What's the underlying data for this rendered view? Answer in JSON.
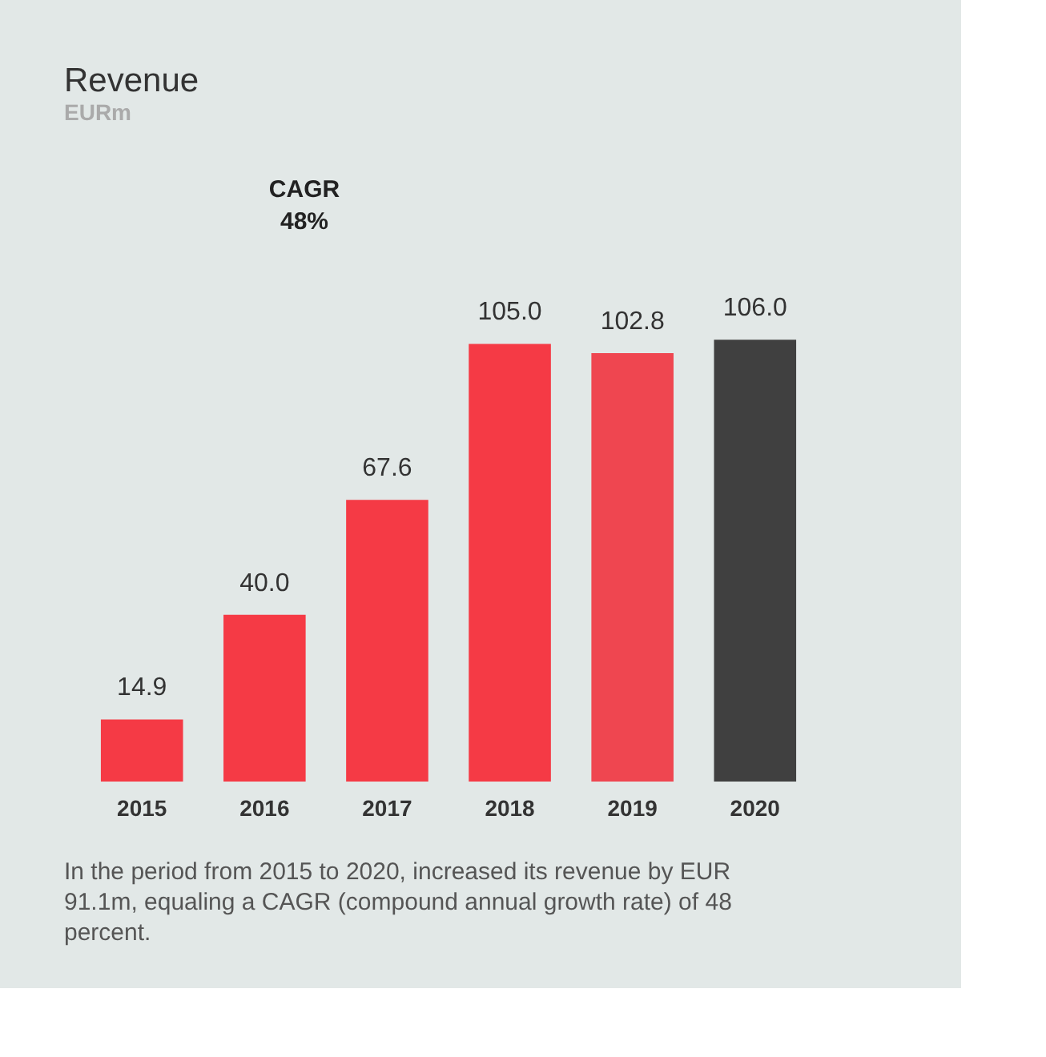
{
  "chart_data": {
    "type": "bar",
    "title": "Revenue",
    "subtitle": "EURm",
    "categories": [
      "2015",
      "2016",
      "2017",
      "2018",
      "2019",
      "2020"
    ],
    "values": [
      14.9,
      40.0,
      67.6,
      105.0,
      102.8,
      106.0
    ],
    "colors": [
      "#f53a45",
      "#f53a45",
      "#f53a45",
      "#f53a45",
      "#ef4650",
      "#404040"
    ],
    "value_labels": [
      "14.9",
      "40.0",
      "67.6",
      "105.0",
      "102.8",
      "106.0"
    ],
    "annotations": [
      "CAGR 48%",
      "In the period from 2015 to 2020, increased its revenue by EUR 91.1m, equaling a CAGR (compound annual growth rate) of 48 percent."
    ],
    "grid": false
  }
}
